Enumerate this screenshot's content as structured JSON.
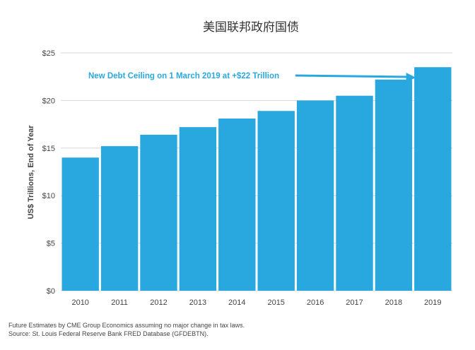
{
  "chart_data": {
    "type": "bar",
    "title": "美国联邦政府国债",
    "ylabel": "US$ Trillions, End of Year",
    "xlabel": "",
    "categories": [
      "2010",
      "2011",
      "2012",
      "2013",
      "2014",
      "2015",
      "2016",
      "2017",
      "2018",
      "2019"
    ],
    "values": [
      14.0,
      15.2,
      16.4,
      17.2,
      18.1,
      18.9,
      20.0,
      20.5,
      22.2,
      23.5
    ],
    "ylim": [
      0,
      25
    ],
    "yticks": [
      "$0",
      "$5",
      "$10",
      "$15",
      "$20",
      "$25"
    ],
    "grid": true,
    "bar_color": "#29a8e0",
    "annotation": {
      "text": "New Debt Ceiling on 1 March 2019 at +$22 Trillion",
      "value": 22,
      "arrow_to": "2019"
    }
  },
  "footnotes": [
    "Future Estimates by CME Group Economics assuming no major change in tax laws.",
    "Source: St. Louis Federal Reserve Bank FRED Database (GFDEBTN)."
  ]
}
